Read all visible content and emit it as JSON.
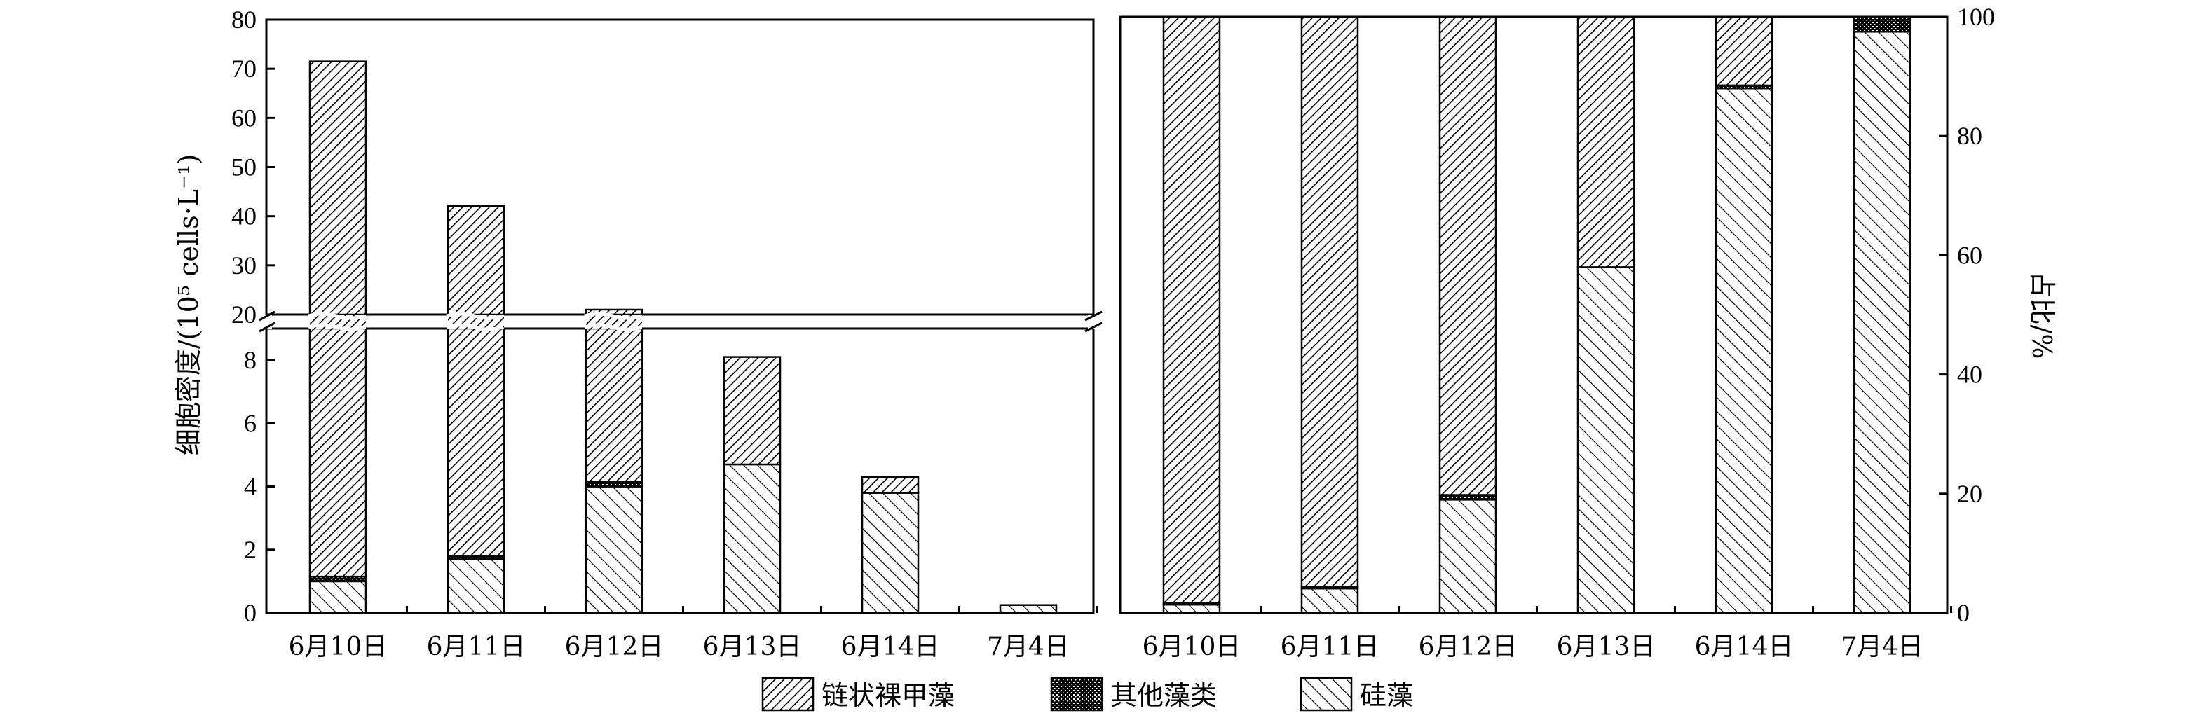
{
  "chart_data": [
    {
      "type": "bar",
      "stacked": true,
      "ylabel": "细胞密度/(10⁵ cells·L⁻¹)",
      "y_axis_break": {
        "lower": [
          0,
          9
        ],
        "upper": [
          20,
          80
        ]
      },
      "lower_ticks": [
        "0",
        "2",
        "4",
        "6",
        "8"
      ],
      "upper_ticks": [
        "20",
        "30",
        "40",
        "50",
        "60",
        "70",
        "80"
      ],
      "categories": [
        "6月10日",
        "6月11日",
        "6月12日",
        "6月13日",
        "6月14日",
        "7月4日"
      ],
      "series": [
        {
          "name": "硅藻",
          "values": [
            1.0,
            1.7,
            4.0,
            4.7,
            3.8,
            0.25
          ]
        },
        {
          "name": "其他藻类",
          "values": [
            0.15,
            0.1,
            0.15,
            0.0,
            0.0,
            0.0
          ]
        },
        {
          "name": "链状裸甲藻",
          "values": [
            70.35,
            40.3,
            16.85,
            3.4,
            0.5,
            0.0
          ]
        }
      ]
    },
    {
      "type": "bar",
      "stacked": true,
      "ylabel": "占比/%",
      "ylim": [
        0,
        100
      ],
      "y_ticks": [
        "0",
        "20",
        "40",
        "60",
        "80",
        "100"
      ],
      "categories": [
        "6月10日",
        "6月11日",
        "6月12日",
        "6月13日",
        "6月14日",
        "7月4日"
      ],
      "series": [
        {
          "name": "硅藻",
          "values": [
            1.4,
            4.1,
            19.0,
            58.0,
            88.0,
            97.5
          ]
        },
        {
          "name": "其他藻类",
          "values": [
            0.3,
            0.3,
            0.8,
            0.0,
            0.5,
            2.5
          ]
        },
        {
          "name": "链状裸甲藻",
          "values": [
            98.3,
            95.6,
            80.2,
            42.0,
            11.5,
            0.0
          ]
        }
      ]
    }
  ],
  "legend": [
    {
      "label": "链状裸甲藻",
      "pattern": "dino"
    },
    {
      "label": "其他藻类",
      "pattern": "other"
    },
    {
      "label": "硅藻",
      "pattern": "diatom"
    }
  ]
}
